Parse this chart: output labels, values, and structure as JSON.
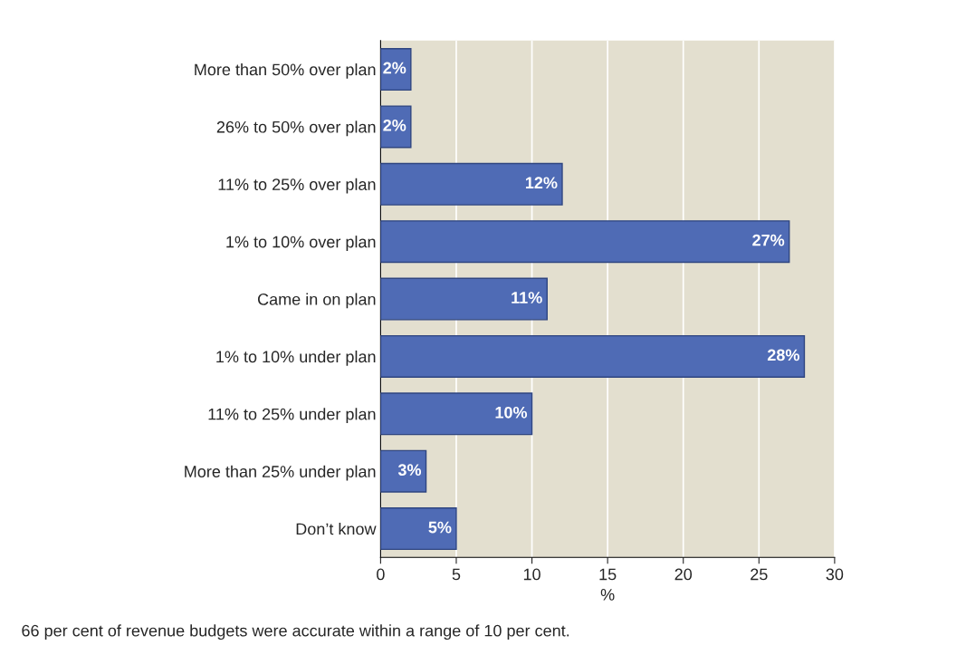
{
  "chart_data": {
    "type": "bar",
    "orientation": "horizontal",
    "categories": [
      "More than 50% over plan",
      "26% to 50% over plan",
      "11% to 25% over plan",
      "1% to 10% over plan",
      "Came in on plan",
      "1% to 10% under plan",
      "11% to 25% under plan",
      "More than 25% under plan",
      "Don’t know"
    ],
    "values": [
      2,
      2,
      12,
      27,
      11,
      28,
      10,
      3,
      5
    ],
    "value_labels": [
      "2%",
      "2%",
      "12%",
      "27%",
      "11%",
      "28%",
      "10%",
      "3%",
      "5%"
    ],
    "color": "#4f6bb5",
    "xlabel": "%",
    "xlim": [
      0,
      30
    ],
    "xticks": [
      0,
      5,
      10,
      15,
      20,
      25,
      30
    ],
    "grid": "x",
    "annotations": [
      "66 per cent of revenue budgets were accurate within a range of 10 per cent."
    ]
  }
}
